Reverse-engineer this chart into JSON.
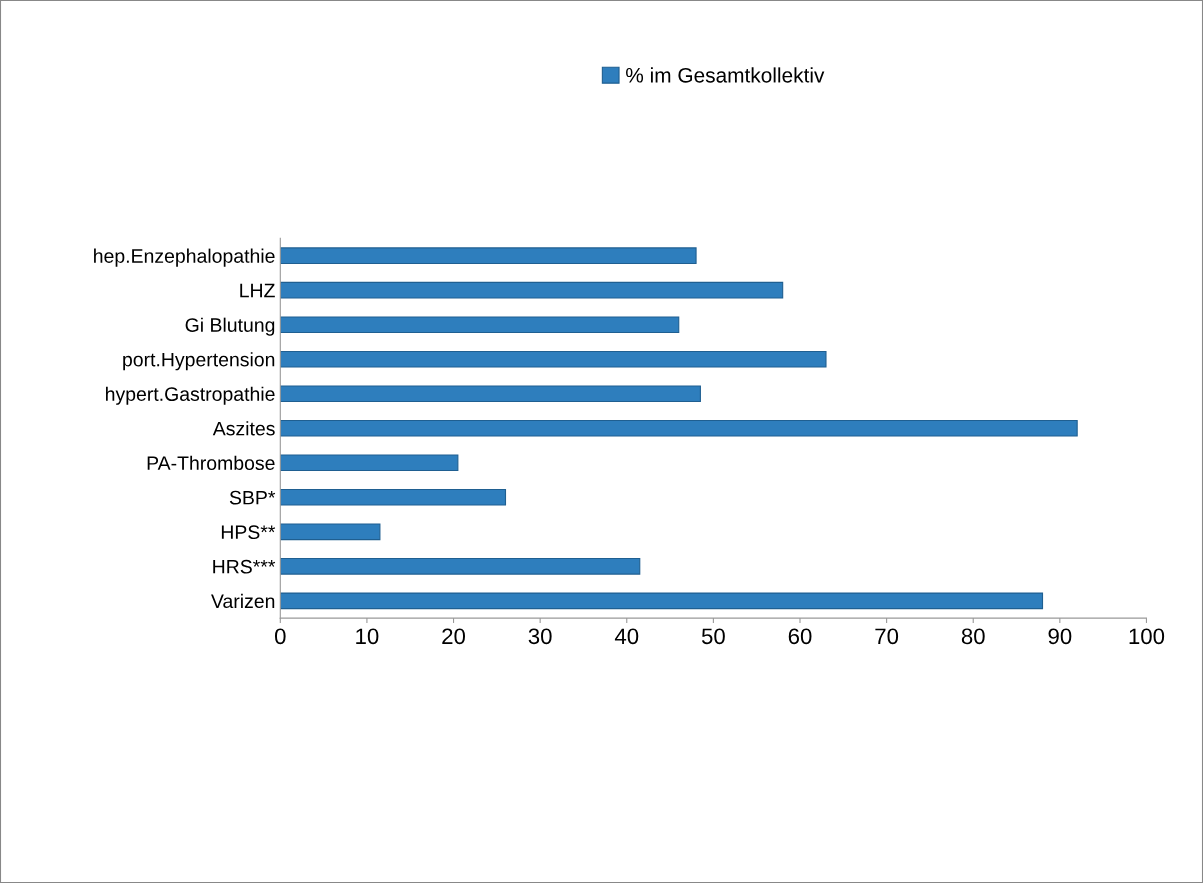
{
  "chart_data": {
    "type": "bar",
    "orientation": "horizontal",
    "categories": [
      "hep.Enzephalopathie",
      "LHZ",
      "Gi Blutung",
      "port.Hypertension",
      "hypert.Gastropathie",
      "Aszites",
      "PA-Thrombose",
      "SBP*",
      "HPS**",
      "HRS***",
      "Varizen"
    ],
    "series": [
      {
        "name": "% im Gesamtkollektiv",
        "color": "#2e7ebd",
        "values": [
          48,
          58,
          46,
          63,
          48.5,
          92,
          20.5,
          26,
          11.5,
          41.5,
          88
        ]
      }
    ],
    "xlim": [
      0,
      100
    ],
    "xticks": [
      0,
      10,
      20,
      30,
      40,
      50,
      60,
      70,
      80,
      90,
      100
    ],
    "grid": false,
    "legend": "top"
  }
}
